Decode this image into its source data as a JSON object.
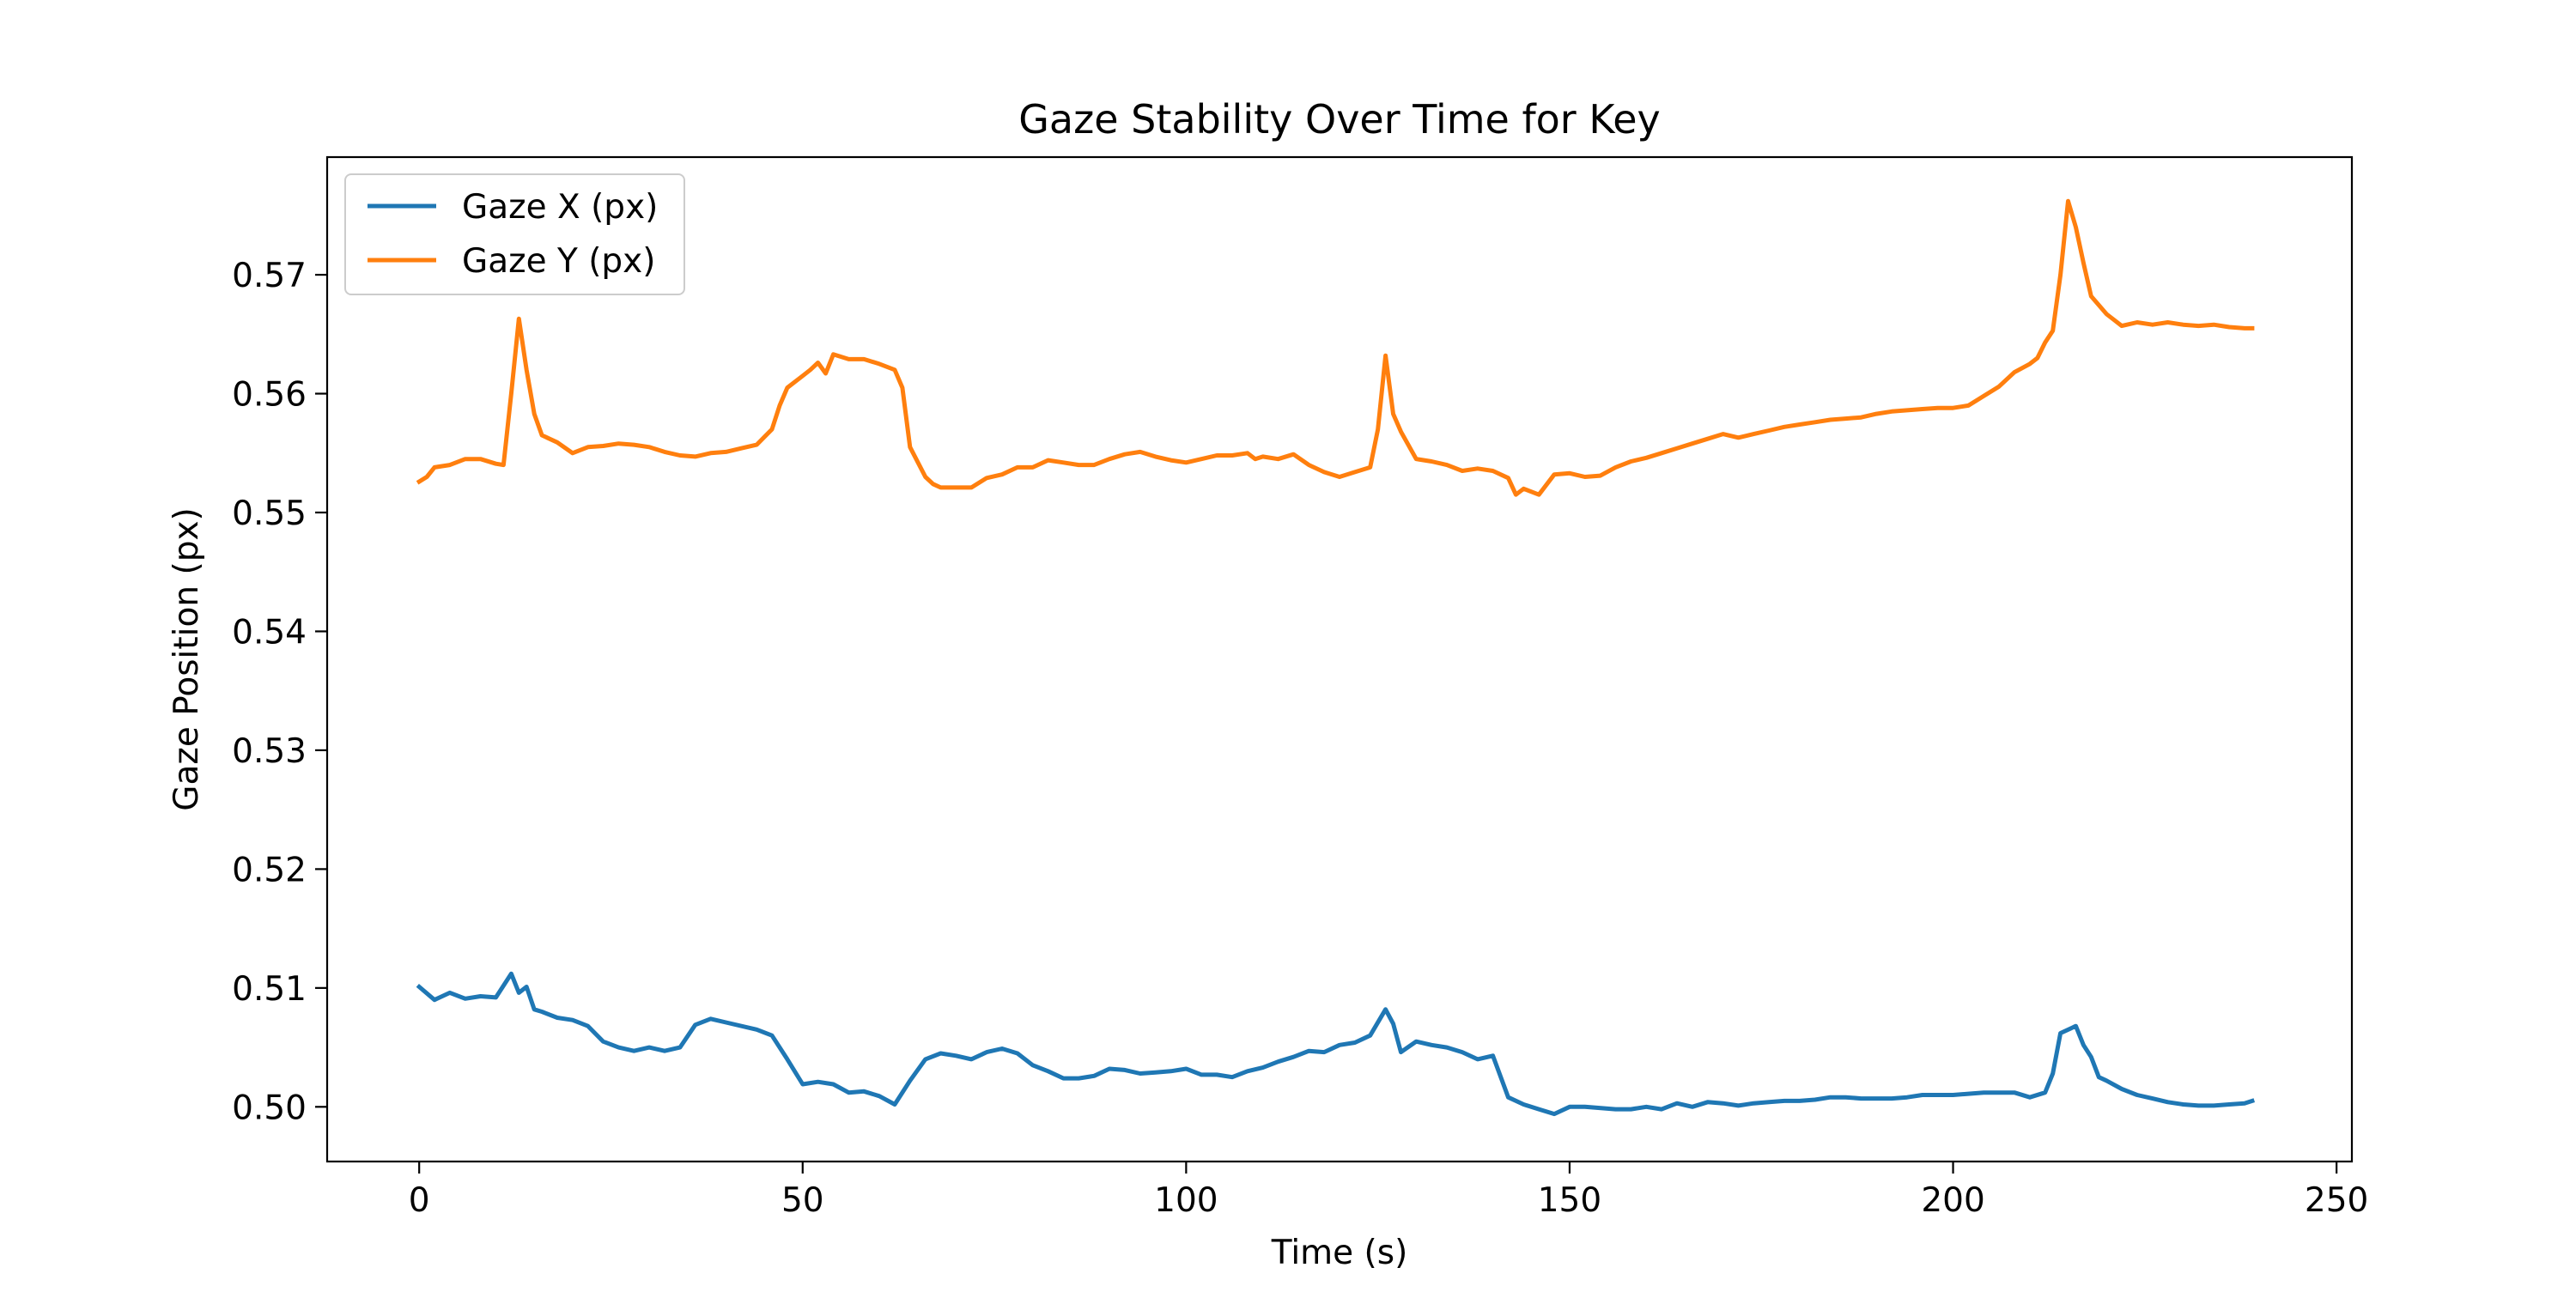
{
  "chart_data": {
    "type": "line",
    "title": "Gaze Stability Over Time for Key",
    "xlabel": "Time (s)",
    "ylabel": "Gaze Position (px)",
    "xlim": [
      -12,
      252
    ],
    "ylim": [
      0.4954,
      0.5799
    ],
    "x_ticks": [
      0,
      50,
      100,
      150,
      200,
      250
    ],
    "y_ticks": [
      0.5,
      0.51,
      0.52,
      0.53,
      0.54,
      0.55,
      0.56,
      0.57
    ],
    "x_tick_labels": [
      "0",
      "50",
      "100",
      "150",
      "200",
      "250"
    ],
    "y_tick_labels": [
      "0.50",
      "0.51",
      "0.52",
      "0.53",
      "0.54",
      "0.55",
      "0.56",
      "0.57"
    ],
    "grid": false,
    "legend": {
      "placement": "top-left",
      "entries": [
        "Gaze X (px)",
        "Gaze Y (px)"
      ]
    },
    "series": [
      {
        "name": "Gaze X (px)",
        "color": "#1f77b4",
        "points": [
          [
            0,
            0.5101
          ],
          [
            2,
            0.509
          ],
          [
            4,
            0.5096
          ],
          [
            6,
            0.5091
          ],
          [
            8,
            0.5093
          ],
          [
            10,
            0.5092
          ],
          [
            12,
            0.5112
          ],
          [
            13,
            0.5096
          ],
          [
            14,
            0.5101
          ],
          [
            15,
            0.5082
          ],
          [
            16,
            0.508
          ],
          [
            18,
            0.5075
          ],
          [
            20,
            0.5073
          ],
          [
            22,
            0.5068
          ],
          [
            24,
            0.5055
          ],
          [
            26,
            0.505
          ],
          [
            28,
            0.5047
          ],
          [
            30,
            0.505
          ],
          [
            32,
            0.5047
          ],
          [
            34,
            0.505
          ],
          [
            36,
            0.5069
          ],
          [
            38,
            0.5074
          ],
          [
            40,
            0.5071
          ],
          [
            44,
            0.5065
          ],
          [
            46,
            0.506
          ],
          [
            48,
            0.504
          ],
          [
            50,
            0.5019
          ],
          [
            52,
            0.5021
          ],
          [
            54,
            0.5019
          ],
          [
            56,
            0.5012
          ],
          [
            58,
            0.5013
          ],
          [
            60,
            0.5009
          ],
          [
            62,
            0.5002
          ],
          [
            64,
            0.5022
          ],
          [
            66,
            0.504
          ],
          [
            68,
            0.5045
          ],
          [
            70,
            0.5043
          ],
          [
            72,
            0.504
          ],
          [
            74,
            0.5046
          ],
          [
            76,
            0.5049
          ],
          [
            78,
            0.5045
          ],
          [
            80,
            0.5035
          ],
          [
            82,
            0.503
          ],
          [
            84,
            0.5024
          ],
          [
            86,
            0.5024
          ],
          [
            88,
            0.5026
          ],
          [
            90,
            0.5032
          ],
          [
            92,
            0.5031
          ],
          [
            94,
            0.5028
          ],
          [
            96,
            0.5029
          ],
          [
            98,
            0.503
          ],
          [
            100,
            0.5032
          ],
          [
            102,
            0.5027
          ],
          [
            104,
            0.5027
          ],
          [
            106,
            0.5025
          ],
          [
            108,
            0.503
          ],
          [
            110,
            0.5033
          ],
          [
            112,
            0.5038
          ],
          [
            114,
            0.5042
          ],
          [
            116,
            0.5047
          ],
          [
            118,
            0.5046
          ],
          [
            120,
            0.5052
          ],
          [
            122,
            0.5054
          ],
          [
            124,
            0.506
          ],
          [
            126,
            0.5082
          ],
          [
            127,
            0.507
          ],
          [
            128,
            0.5046
          ],
          [
            130,
            0.5055
          ],
          [
            132,
            0.5052
          ],
          [
            134,
            0.505
          ],
          [
            136,
            0.5046
          ],
          [
            138,
            0.504
          ],
          [
            140,
            0.5043
          ],
          [
            142,
            0.5008
          ],
          [
            144,
            0.5002
          ],
          [
            146,
            0.4998
          ],
          [
            148,
            0.4994
          ],
          [
            150,
            0.5
          ],
          [
            152,
            0.5
          ],
          [
            156,
            0.4998
          ],
          [
            158,
            0.4998
          ],
          [
            160,
            0.5
          ],
          [
            162,
            0.4998
          ],
          [
            164,
            0.5003
          ],
          [
            166,
            0.5
          ],
          [
            168,
            0.5004
          ],
          [
            170,
            0.5003
          ],
          [
            172,
            0.5001
          ],
          [
            174,
            0.5003
          ],
          [
            176,
            0.5004
          ],
          [
            178,
            0.5005
          ],
          [
            180,
            0.5005
          ],
          [
            182,
            0.5006
          ],
          [
            184,
            0.5008
          ],
          [
            186,
            0.5008
          ],
          [
            188,
            0.5007
          ],
          [
            190,
            0.5007
          ],
          [
            192,
            0.5007
          ],
          [
            194,
            0.5008
          ],
          [
            196,
            0.501
          ],
          [
            198,
            0.501
          ],
          [
            200,
            0.501
          ],
          [
            202,
            0.5011
          ],
          [
            204,
            0.5012
          ],
          [
            206,
            0.5012
          ],
          [
            208,
            0.5012
          ],
          [
            210,
            0.5008
          ],
          [
            212,
            0.5012
          ],
          [
            213,
            0.5028
          ],
          [
            214,
            0.5062
          ],
          [
            216,
            0.5068
          ],
          [
            217,
            0.5052
          ],
          [
            218,
            0.5042
          ],
          [
            219,
            0.5025
          ],
          [
            220,
            0.5022
          ],
          [
            222,
            0.5015
          ],
          [
            224,
            0.501
          ],
          [
            226,
            0.5007
          ],
          [
            228,
            0.5004
          ],
          [
            230,
            0.5002
          ],
          [
            232,
            0.5001
          ],
          [
            234,
            0.5001
          ],
          [
            236,
            0.5002
          ],
          [
            238,
            0.5003
          ],
          [
            239,
            0.5005
          ]
        ]
      },
      {
        "name": "Gaze Y (px)",
        "color": "#ff7f0e",
        "points": [
          [
            0,
            0.5526
          ],
          [
            1,
            0.553
          ],
          [
            2,
            0.5538
          ],
          [
            4,
            0.554
          ],
          [
            6,
            0.5545
          ],
          [
            8,
            0.5545
          ],
          [
            10,
            0.5541
          ],
          [
            11,
            0.554
          ],
          [
            12,
            0.56
          ],
          [
            13,
            0.5663
          ],
          [
            14,
            0.562
          ],
          [
            15,
            0.5583
          ],
          [
            16,
            0.5565
          ],
          [
            18,
            0.5559
          ],
          [
            20,
            0.555
          ],
          [
            22,
            0.5555
          ],
          [
            24,
            0.5556
          ],
          [
            26,
            0.5558
          ],
          [
            28,
            0.5557
          ],
          [
            30,
            0.5555
          ],
          [
            32,
            0.5551
          ],
          [
            34,
            0.5548
          ],
          [
            36,
            0.5547
          ],
          [
            38,
            0.555
          ],
          [
            40,
            0.5551
          ],
          [
            42,
            0.5554
          ],
          [
            44,
            0.5557
          ],
          [
            46,
            0.557
          ],
          [
            47,
            0.559
          ],
          [
            48,
            0.5605
          ],
          [
            50,
            0.5615
          ],
          [
            51,
            0.562
          ],
          [
            52,
            0.5626
          ],
          [
            53,
            0.5617
          ],
          [
            54,
            0.5633
          ],
          [
            56,
            0.5629
          ],
          [
            58,
            0.5629
          ],
          [
            60,
            0.5625
          ],
          [
            62,
            0.562
          ],
          [
            63,
            0.5605
          ],
          [
            64,
            0.5555
          ],
          [
            66,
            0.553
          ],
          [
            67,
            0.5524
          ],
          [
            68,
            0.5521
          ],
          [
            70,
            0.5521
          ],
          [
            72,
            0.5521
          ],
          [
            74,
            0.5529
          ],
          [
            76,
            0.5532
          ],
          [
            78,
            0.5538
          ],
          [
            80,
            0.5538
          ],
          [
            82,
            0.5544
          ],
          [
            84,
            0.5542
          ],
          [
            86,
            0.554
          ],
          [
            88,
            0.554
          ],
          [
            90,
            0.5545
          ],
          [
            92,
            0.5549
          ],
          [
            94,
            0.5551
          ],
          [
            96,
            0.5547
          ],
          [
            98,
            0.5544
          ],
          [
            100,
            0.5542
          ],
          [
            102,
            0.5545
          ],
          [
            104,
            0.5548
          ],
          [
            106,
            0.5548
          ],
          [
            108,
            0.555
          ],
          [
            109,
            0.5545
          ],
          [
            110,
            0.5547
          ],
          [
            112,
            0.5545
          ],
          [
            114,
            0.5549
          ],
          [
            116,
            0.554
          ],
          [
            118,
            0.5534
          ],
          [
            120,
            0.553
          ],
          [
            122,
            0.5534
          ],
          [
            124,
            0.5538
          ],
          [
            125,
            0.557
          ],
          [
            126,
            0.5632
          ],
          [
            127,
            0.5583
          ],
          [
            128,
            0.5568
          ],
          [
            130,
            0.5545
          ],
          [
            132,
            0.5543
          ],
          [
            134,
            0.554
          ],
          [
            136,
            0.5535
          ],
          [
            138,
            0.5537
          ],
          [
            140,
            0.5535
          ],
          [
            142,
            0.5529
          ],
          [
            143,
            0.5515
          ],
          [
            144,
            0.552
          ],
          [
            146,
            0.5515
          ],
          [
            148,
            0.5532
          ],
          [
            150,
            0.5533
          ],
          [
            152,
            0.553
          ],
          [
            154,
            0.5531
          ],
          [
            156,
            0.5538
          ],
          [
            158,
            0.5543
          ],
          [
            160,
            0.5546
          ],
          [
            162,
            0.555
          ],
          [
            164,
            0.5554
          ],
          [
            166,
            0.5558
          ],
          [
            168,
            0.5562
          ],
          [
            170,
            0.5566
          ],
          [
            172,
            0.5563
          ],
          [
            174,
            0.5566
          ],
          [
            176,
            0.5569
          ],
          [
            178,
            0.5572
          ],
          [
            180,
            0.5574
          ],
          [
            182,
            0.5576
          ],
          [
            184,
            0.5578
          ],
          [
            186,
            0.5579
          ],
          [
            188,
            0.558
          ],
          [
            190,
            0.5583
          ],
          [
            192,
            0.5585
          ],
          [
            194,
            0.5586
          ],
          [
            196,
            0.5587
          ],
          [
            198,
            0.5588
          ],
          [
            200,
            0.5588
          ],
          [
            202,
            0.559
          ],
          [
            204,
            0.5598
          ],
          [
            206,
            0.5606
          ],
          [
            208,
            0.5618
          ],
          [
            210,
            0.5625
          ],
          [
            211,
            0.563
          ],
          [
            212,
            0.5643
          ],
          [
            213,
            0.5653
          ],
          [
            214,
            0.57
          ],
          [
            215,
            0.5762
          ],
          [
            216,
            0.574
          ],
          [
            217,
            0.571
          ],
          [
            218,
            0.5682
          ],
          [
            220,
            0.5667
          ],
          [
            221,
            0.5662
          ],
          [
            222,
            0.5657
          ],
          [
            224,
            0.566
          ],
          [
            226,
            0.5658
          ],
          [
            228,
            0.566
          ],
          [
            230,
            0.5658
          ],
          [
            232,
            0.5657
          ],
          [
            234,
            0.5658
          ],
          [
            236,
            0.5656
          ],
          [
            238,
            0.5655
          ],
          [
            239,
            0.5655
          ]
        ]
      }
    ]
  }
}
